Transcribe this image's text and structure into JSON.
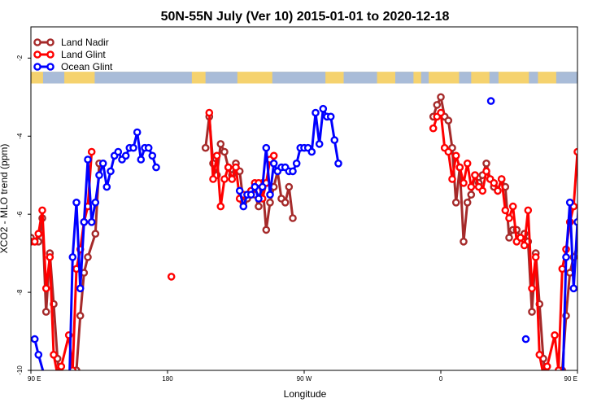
{
  "chart_data": {
    "type": "line",
    "title": "50N-55N July (Ver 10)   2015-01-01 to 2020-12-18",
    "xlabel": "Longitude",
    "ylabel": "XCO2 - MLO trend (ppm)",
    "xlim": [
      90,
      450
    ],
    "ylim": [
      -10,
      -1.2
    ],
    "x_ticks": [
      {
        "value": 90,
        "label": "90 E"
      },
      {
        "value": 180,
        "label": "180"
      },
      {
        "value": 270,
        "label": "90 W"
      },
      {
        "value": 360,
        "label": "0"
      },
      {
        "value": 450,
        "label": "90 E"
      },
      {
        "value": 540,
        "label": "180"
      }
    ],
    "y_ticks": [
      -2,
      -4,
      -6,
      -8,
      -10
    ],
    "legend_position": "top-left",
    "land_mask_band": {
      "y_top": -2.35,
      "y_bottom": -2.65,
      "land_color": "#f5d26e",
      "ocean_color": "#a9bcd8"
    },
    "series": [
      {
        "name": "Land Nadir",
        "color": "#a52a2a",
        "points": [
          [
            90,
            -6.6
          ],
          [
            92.5,
            -6.7
          ],
          [
            95,
            -6.7
          ],
          [
            97.5,
            -6.1
          ],
          [
            100,
            -8.5
          ],
          [
            102.5,
            -7.0
          ],
          [
            105,
            -8.3
          ],
          [
            107.5,
            -9.7
          ],
          [
            110,
            -10.5
          ],
          [
            115,
            -11.2
          ],
          [
            120,
            -10.0
          ],
          [
            122.5,
            -8.6
          ],
          [
            125,
            -7.5
          ],
          [
            127.5,
            -7.1
          ],
          [
            132.5,
            -6.5
          ],
          [
            135,
            -4.7
          ],
          [
            205,
            -4.3
          ],
          [
            207.5,
            -3.5
          ],
          [
            210,
            -4.7
          ],
          [
            212.5,
            -5.0
          ],
          [
            215,
            -4.2
          ],
          [
            217.5,
            -4.4
          ],
          [
            220,
            -4.8
          ],
          [
            222.5,
            -5.0
          ],
          [
            225,
            -4.7
          ],
          [
            227.5,
            -4.9
          ],
          [
            230,
            -5.7
          ],
          [
            232.5,
            -5.6
          ],
          [
            235,
            -5.5
          ],
          [
            237.5,
            -5.5
          ],
          [
            240,
            -5.8
          ],
          [
            242.5,
            -5.2
          ],
          [
            245,
            -6.4
          ],
          [
            247.5,
            -5.7
          ],
          [
            250,
            -5.3
          ],
          [
            252.5,
            -4.9
          ],
          [
            255,
            -5.6
          ],
          [
            257.5,
            -5.7
          ],
          [
            260,
            -5.3
          ],
          [
            262.5,
            -6.1
          ],
          [
            355,
            -3.5
          ],
          [
            357.5,
            -3.2
          ],
          [
            360,
            -3.0
          ],
          [
            362.5,
            -3.5
          ],
          [
            365,
            -3.6
          ],
          [
            367.5,
            -4.3
          ],
          [
            370,
            -5.7
          ],
          [
            372.5,
            -4.8
          ],
          [
            375,
            -6.7
          ],
          [
            377.5,
            -5.7
          ],
          [
            380,
            -5.5
          ],
          [
            382.5,
            -5.0
          ],
          [
            385,
            -5.2
          ],
          [
            387.5,
            -5.0
          ],
          [
            390,
            -4.7
          ],
          [
            392.5,
            -5.1
          ],
          [
            395,
            -5.3
          ],
          [
            397.5,
            -5.4
          ],
          [
            400,
            -5.1
          ],
          [
            402.5,
            -5.3
          ],
          [
            405,
            -6.6
          ],
          [
            407.5,
            -6.4
          ],
          [
            410,
            -6.4
          ],
          [
            412.5,
            -6.6
          ],
          [
            415,
            -6.5
          ],
          [
            417.5,
            -6.7
          ],
          [
            420,
            -8.5
          ],
          [
            422.5,
            -7.0
          ],
          [
            425,
            -8.3
          ],
          [
            427.5,
            -9.7
          ],
          [
            430,
            -10.5
          ],
          [
            435,
            -11.2
          ],
          [
            440,
            -10.0
          ],
          [
            442.5,
            -8.6
          ],
          [
            445,
            -7.5
          ],
          [
            447.5,
            -7.1
          ],
          [
            452.5,
            -6.5
          ],
          [
            455,
            -4.7
          ]
        ]
      },
      {
        "name": "Land Glint",
        "color": "#ff0000",
        "points": [
          [
            90,
            -6.7
          ],
          [
            92.5,
            -6.7
          ],
          [
            95,
            -6.5
          ],
          [
            97.5,
            -5.9
          ],
          [
            100,
            -7.9
          ],
          [
            102.5,
            -7.1
          ],
          [
            105,
            -9.6
          ],
          [
            107.5,
            -10.1
          ],
          [
            110,
            -9.9
          ],
          [
            115,
            -9.1
          ],
          [
            117.5,
            -10.0
          ],
          [
            120,
            -7.4
          ],
          [
            122.5,
            -6.9
          ],
          [
            125,
            -6.2
          ],
          [
            127.5,
            -5.8
          ],
          [
            130,
            -4.4
          ],
          [
            182.5,
            -7.6
          ],
          [
            207.5,
            -3.4
          ],
          [
            210,
            -5.1
          ],
          [
            212.5,
            -4.5
          ],
          [
            215,
            -5.8
          ],
          [
            217.5,
            -5.1
          ],
          [
            220,
            -4.8
          ],
          [
            222.5,
            -5.1
          ],
          [
            225,
            -4.8
          ],
          [
            227.5,
            -5.6
          ],
          [
            230,
            -5.5
          ],
          [
            232.5,
            -5.5
          ],
          [
            235,
            -5.4
          ],
          [
            237.5,
            -5.2
          ],
          [
            240,
            -5.2
          ],
          [
            242.5,
            -5.6
          ],
          [
            245,
            -5.2
          ],
          [
            247.5,
            -4.6
          ],
          [
            250,
            -4.5
          ],
          [
            355,
            -3.8
          ],
          [
            357.5,
            -3.5
          ],
          [
            360,
            -3.4
          ],
          [
            362.5,
            -4.3
          ],
          [
            365,
            -4.4
          ],
          [
            367.5,
            -5.1
          ],
          [
            370,
            -4.5
          ],
          [
            372.5,
            -4.8
          ],
          [
            375,
            -5.2
          ],
          [
            377.5,
            -4.7
          ],
          [
            380,
            -5.3
          ],
          [
            382.5,
            -5.0
          ],
          [
            385,
            -5.3
          ],
          [
            387.5,
            -5.4
          ],
          [
            390,
            -4.9
          ],
          [
            392.5,
            -5.1
          ],
          [
            395,
            -5.2
          ],
          [
            397.5,
            -5.4
          ],
          [
            400,
            -5.1
          ],
          [
            402.5,
            -5.9
          ],
          [
            405,
            -6.1
          ],
          [
            407.5,
            -5.8
          ],
          [
            410,
            -6.7
          ],
          [
            412.5,
            -6.6
          ],
          [
            415,
            -6.8
          ],
          [
            417.5,
            -5.9
          ],
          [
            420,
            -7.9
          ],
          [
            422.5,
            -7.1
          ],
          [
            425,
            -9.6
          ],
          [
            427.5,
            -10.1
          ],
          [
            430,
            -9.9
          ],
          [
            435,
            -9.1
          ],
          [
            437.5,
            -10.0
          ],
          [
            440,
            -7.4
          ],
          [
            442.5,
            -6.9
          ],
          [
            445,
            -6.2
          ],
          [
            447.5,
            -5.8
          ],
          [
            450,
            -4.4
          ]
        ]
      },
      {
        "name": "Ocean Glint",
        "color": "#0000ff",
        "points": [
          [
            92.5,
            -9.2
          ],
          [
            95,
            -9.6
          ],
          [
            100,
            -10.3
          ],
          [
            105,
            -10.9
          ],
          [
            110,
            -11.3
          ],
          [
            115,
            -10.8
          ],
          [
            117.5,
            -7.1
          ],
          [
            120,
            -5.7
          ],
          [
            122.5,
            -7.9
          ],
          [
            125,
            -6.2
          ],
          [
            127.5,
            -4.6
          ],
          [
            130,
            -6.2
          ],
          [
            132.5,
            -5.7
          ],
          [
            135,
            -5.0
          ],
          [
            137.5,
            -4.7
          ],
          [
            140,
            -5.3
          ],
          [
            142.5,
            -4.9
          ],
          [
            145,
            -4.5
          ],
          [
            147.5,
            -4.4
          ],
          [
            150,
            -4.6
          ],
          [
            152.5,
            -4.5
          ],
          [
            155,
            -4.3
          ],
          [
            157.5,
            -4.3
          ],
          [
            160,
            -3.9
          ],
          [
            162.5,
            -4.6
          ],
          [
            165,
            -4.3
          ],
          [
            167.5,
            -4.3
          ],
          [
            170,
            -4.5
          ],
          [
            172.5,
            -4.8
          ],
          [
            227.5,
            -5.4
          ],
          [
            230,
            -5.8
          ],
          [
            232.5,
            -5.5
          ],
          [
            235,
            -5.5
          ],
          [
            237.5,
            -5.3
          ],
          [
            240,
            -5.6
          ],
          [
            242.5,
            -5.3
          ],
          [
            245,
            -4.3
          ],
          [
            247.5,
            -5.5
          ],
          [
            250,
            -4.7
          ],
          [
            252.5,
            -4.9
          ],
          [
            255,
            -4.8
          ],
          [
            257.5,
            -4.8
          ],
          [
            260,
            -4.9
          ],
          [
            262.5,
            -4.9
          ],
          [
            265,
            -4.7
          ],
          [
            267.5,
            -4.3
          ],
          [
            270,
            -4.3
          ],
          [
            272.5,
            -4.3
          ],
          [
            275,
            -4.4
          ],
          [
            277.5,
            -3.4
          ],
          [
            280,
            -4.2
          ],
          [
            282.5,
            -3.3
          ],
          [
            285,
            -3.5
          ],
          [
            287.5,
            -3.5
          ],
          [
            290,
            -4.1
          ],
          [
            292.5,
            -4.7
          ],
          [
            393,
            -3.1
          ],
          [
            416,
            -9.2
          ],
          [
            437.5,
            -11.3
          ],
          [
            440,
            -10.8
          ],
          [
            442.5,
            -7.1
          ],
          [
            445,
            -5.7
          ],
          [
            447.5,
            -7.9
          ],
          [
            450,
            -6.2
          ],
          [
            452.5,
            -4.6
          ],
          [
            455,
            -6.2
          ],
          [
            457.5,
            -5.7
          ],
          [
            460,
            -5.0
          ]
        ]
      }
    ]
  }
}
